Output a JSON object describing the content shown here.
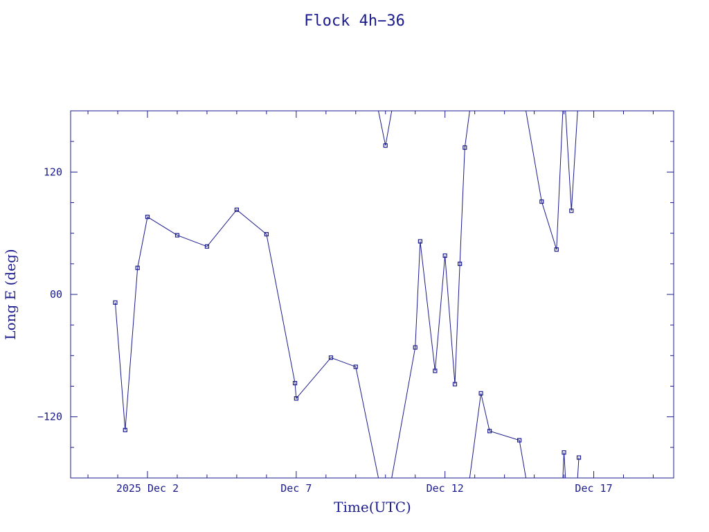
{
  "colors": {
    "ink": "#1a1a8c",
    "background": "#ffffff"
  },
  "chart_data": {
    "type": "line",
    "title": "Flock 4h−36",
    "xlabel": "Time(UTC)",
    "ylabel": "Long E (deg)",
    "xlim": [
      "2025-11-29T10:00",
      "2025-12-19T16:30"
    ],
    "ylim": [
      -180,
      180
    ],
    "x_ticks": [
      {
        "x": "2025-12-02T00:00",
        "label": "2025 Dec  2"
      },
      {
        "x": "2025-12-07T00:00",
        "label": "Dec  7"
      },
      {
        "x": "2025-12-12T00:00",
        "label": "Dec 12"
      },
      {
        "x": "2025-12-17T00:00",
        "label": "Dec 17"
      }
    ],
    "y_ticks": [
      {
        "y": 120,
        "label": "120"
      },
      {
        "y": 0,
        "label": "00"
      },
      {
        "y": -120,
        "label": "−120"
      }
    ],
    "grid": false,
    "legend": "none",
    "marker": "square",
    "wrap": 360,
    "series": [
      {
        "x": [
          "2025-11-30T22:00",
          "2025-12-01T06:00",
          "2025-12-01T16:00",
          "2025-12-02T00:00",
          "2025-12-03T00:00",
          "2025-12-04T00:00",
          "2025-12-05T00:00",
          "2025-12-06T00:00",
          "2025-12-06T23:00",
          "2025-12-07T00:00",
          "2025-12-08T04:00",
          "2025-12-09T00:00",
          "2025-12-10T00:00",
          "2025-12-11T00:00",
          "2025-12-11T04:00",
          "2025-12-11T16:00",
          "2025-12-12T00:00",
          "2025-12-12T08:00",
          "2025-12-12T12:00",
          "2025-12-12T16:00",
          "2025-12-13T05:00",
          "2025-12-13T12:00",
          "2025-12-14T12:00",
          "2025-12-15T06:00",
          "2025-12-15T18:00",
          "2025-12-16T00:00",
          "2025-12-16T06:00",
          "2025-12-16T12:00"
        ],
        "values": [
          -8,
          -133,
          26,
          76,
          58,
          47,
          83,
          59,
          -87,
          -102,
          -62,
          -71,
          146,
          -52,
          52,
          -75,
          38,
          -88,
          30,
          144,
          -97,
          -134,
          -143,
          91,
          44,
          -155,
          82,
          -160
        ]
      }
    ]
  }
}
